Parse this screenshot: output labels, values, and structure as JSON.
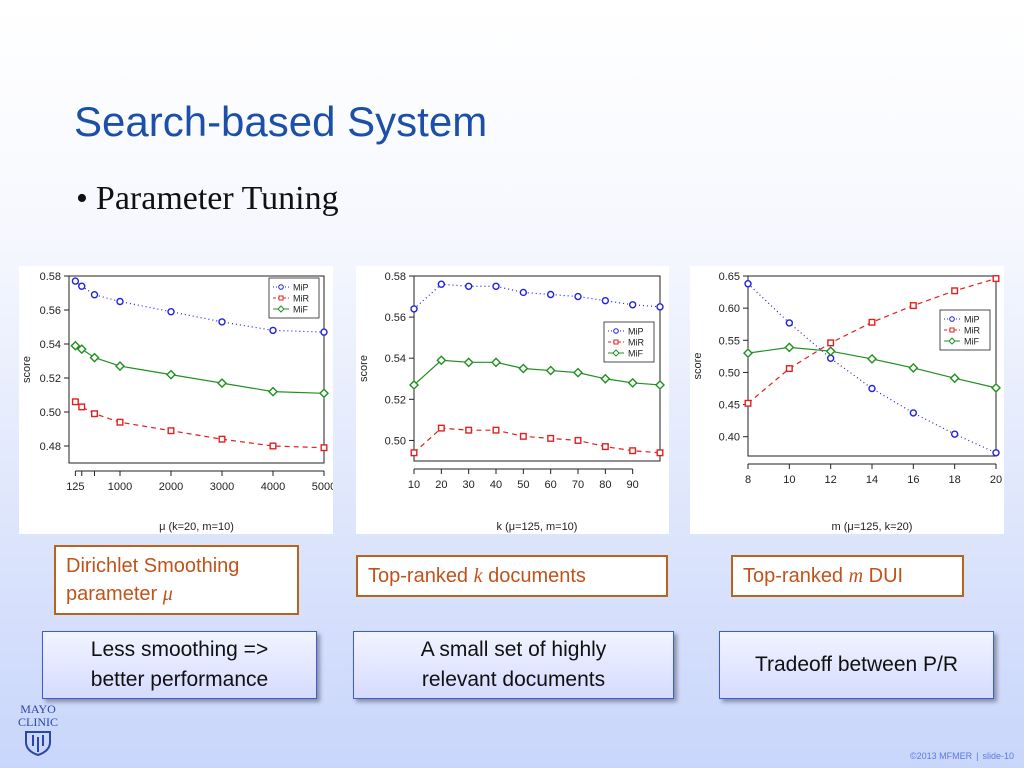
{
  "slide": {
    "title": "Search-based System",
    "bullet": "Parameter Tuning",
    "footer": {
      "copyright": "©2013 MFMER",
      "separator": "|",
      "slide": "slide-10"
    },
    "logo": {
      "line1": "MAYO",
      "line2": "CLINIC"
    }
  },
  "captions": [
    {
      "line1": "Dirichlet Smoothing",
      "line2_text": "parameter ",
      "var": "μ"
    },
    {
      "pre": "Top-ranked ",
      "var": "k",
      "post": " documents"
    },
    {
      "pre": "Top-ranked ",
      "var": "m",
      "post": " DUI"
    }
  ],
  "notes": [
    {
      "line1": "Less smoothing =>",
      "line2": "better performance"
    },
    {
      "line1": "A small set of highly",
      "line2": "relevant documents"
    },
    {
      "line1": "Tradeoff between P/R"
    }
  ],
  "colors": {
    "MiP": "#2020e0",
    "MiR": "#e02020",
    "MiF": "#209020"
  },
  "chart_data": [
    {
      "type": "line",
      "xlabel": "μ (k=20, m=10)",
      "ylabel": "score",
      "x": [
        125,
        250,
        500,
        1000,
        2000,
        3000,
        4000,
        5000
      ],
      "xticks": [
        125,
        1000,
        2000,
        3000,
        4000,
        5000
      ],
      "xlim": [
        0,
        5000
      ],
      "ylim": [
        0.47,
        0.58
      ],
      "yticks": [
        0.48,
        0.5,
        0.52,
        0.54,
        0.56,
        0.58
      ],
      "legend_position": "top-right",
      "series": [
        {
          "name": "MiP",
          "style": "dotted",
          "marker": "circle",
          "values": [
            0.577,
            0.574,
            0.569,
            0.565,
            0.559,
            0.553,
            0.548,
            0.547
          ]
        },
        {
          "name": "MiR",
          "style": "dashed",
          "marker": "square",
          "values": [
            0.506,
            0.503,
            0.499,
            0.494,
            0.489,
            0.484,
            0.48,
            0.479
          ]
        },
        {
          "name": "MiF",
          "style": "solid",
          "marker": "diamond",
          "values": [
            0.539,
            0.537,
            0.532,
            0.527,
            0.522,
            0.517,
            0.512,
            0.511
          ]
        }
      ]
    },
    {
      "type": "line",
      "xlabel": "k (μ=125, m=10)",
      "ylabel": "score",
      "x": [
        10,
        20,
        30,
        40,
        50,
        60,
        70,
        80,
        90,
        100
      ],
      "xticks": [
        10,
        20,
        30,
        40,
        50,
        60,
        70,
        80,
        90
      ],
      "xlim": [
        10,
        100
      ],
      "ylim": [
        0.49,
        0.58
      ],
      "yticks": [
        0.5,
        0.52,
        0.54,
        0.56,
        0.58
      ],
      "legend_position": "right",
      "series": [
        {
          "name": "MiP",
          "style": "dotted",
          "marker": "circle",
          "values": [
            0.564,
            0.576,
            0.575,
            0.575,
            0.572,
            0.571,
            0.57,
            0.568,
            0.566,
            0.565
          ]
        },
        {
          "name": "MiR",
          "style": "dashed",
          "marker": "square",
          "values": [
            0.494,
            0.506,
            0.505,
            0.505,
            0.502,
            0.501,
            0.5,
            0.497,
            0.495,
            0.494
          ]
        },
        {
          "name": "MiF",
          "style": "solid",
          "marker": "diamond",
          "values": [
            0.527,
            0.539,
            0.538,
            0.538,
            0.535,
            0.534,
            0.533,
            0.53,
            0.528,
            0.527
          ]
        }
      ]
    },
    {
      "type": "line",
      "xlabel": "m (μ=125, k=20)",
      "ylabel": "score",
      "x": [
        8,
        10,
        12,
        14,
        16,
        18,
        20
      ],
      "xticks": [
        8,
        10,
        12,
        14,
        16,
        18,
        20
      ],
      "xlim": [
        8,
        20
      ],
      "ylim": [
        0.37,
        0.65
      ],
      "yticks": [
        0.4,
        0.45,
        0.5,
        0.55,
        0.6,
        0.65
      ],
      "legend_position": "right",
      "series": [
        {
          "name": "MiP",
          "style": "dotted",
          "marker": "circle",
          "values": [
            0.638,
            0.577,
            0.522,
            0.475,
            0.437,
            0.404,
            0.375
          ]
        },
        {
          "name": "MiR",
          "style": "dashed",
          "marker": "square",
          "values": [
            0.452,
            0.506,
            0.546,
            0.578,
            0.604,
            0.627,
            0.646
          ]
        },
        {
          "name": "MiF",
          "style": "solid",
          "marker": "diamond",
          "values": [
            0.53,
            0.539,
            0.533,
            0.521,
            0.507,
            0.491,
            0.476
          ]
        }
      ]
    }
  ]
}
